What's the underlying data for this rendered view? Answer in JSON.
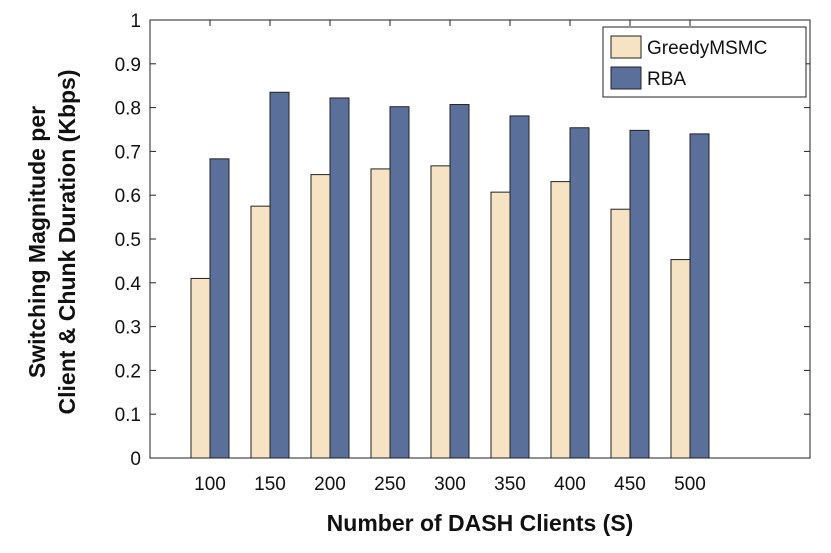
{
  "chart_data": {
    "type": "bar",
    "title": "",
    "xlabel": "Number of DASH Clients (S)",
    "ylabel_lines": [
      "Switching Magnitude per",
      "Client & Chunk Duration (Kbps)"
    ],
    "categories": [
      "100",
      "150",
      "200",
      "250",
      "300",
      "350",
      "400",
      "450",
      "500"
    ],
    "ylim": [
      0,
      1
    ],
    "yticks": [
      0,
      0.1,
      0.2,
      0.3,
      0.4,
      0.5,
      0.6,
      0.7,
      0.8,
      0.9,
      1
    ],
    "ytick_labels": [
      "0",
      "0.1",
      "0.2",
      "0.3",
      "0.4",
      "0.5",
      "0.6",
      "0.7",
      "0.8",
      "0.9",
      "1"
    ],
    "legend_position": "top-right",
    "grid": false,
    "series": [
      {
        "name": "GreedyMSMC",
        "color": "#F5E3C3",
        "values": [
          0.41,
          0.575,
          0.647,
          0.66,
          0.667,
          0.607,
          0.631,
          0.568,
          0.453
        ]
      },
      {
        "name": "RBA",
        "color": "#5B6F9B",
        "values": [
          0.683,
          0.835,
          0.822,
          0.802,
          0.807,
          0.781,
          0.754,
          0.748,
          0.74
        ]
      }
    ]
  }
}
